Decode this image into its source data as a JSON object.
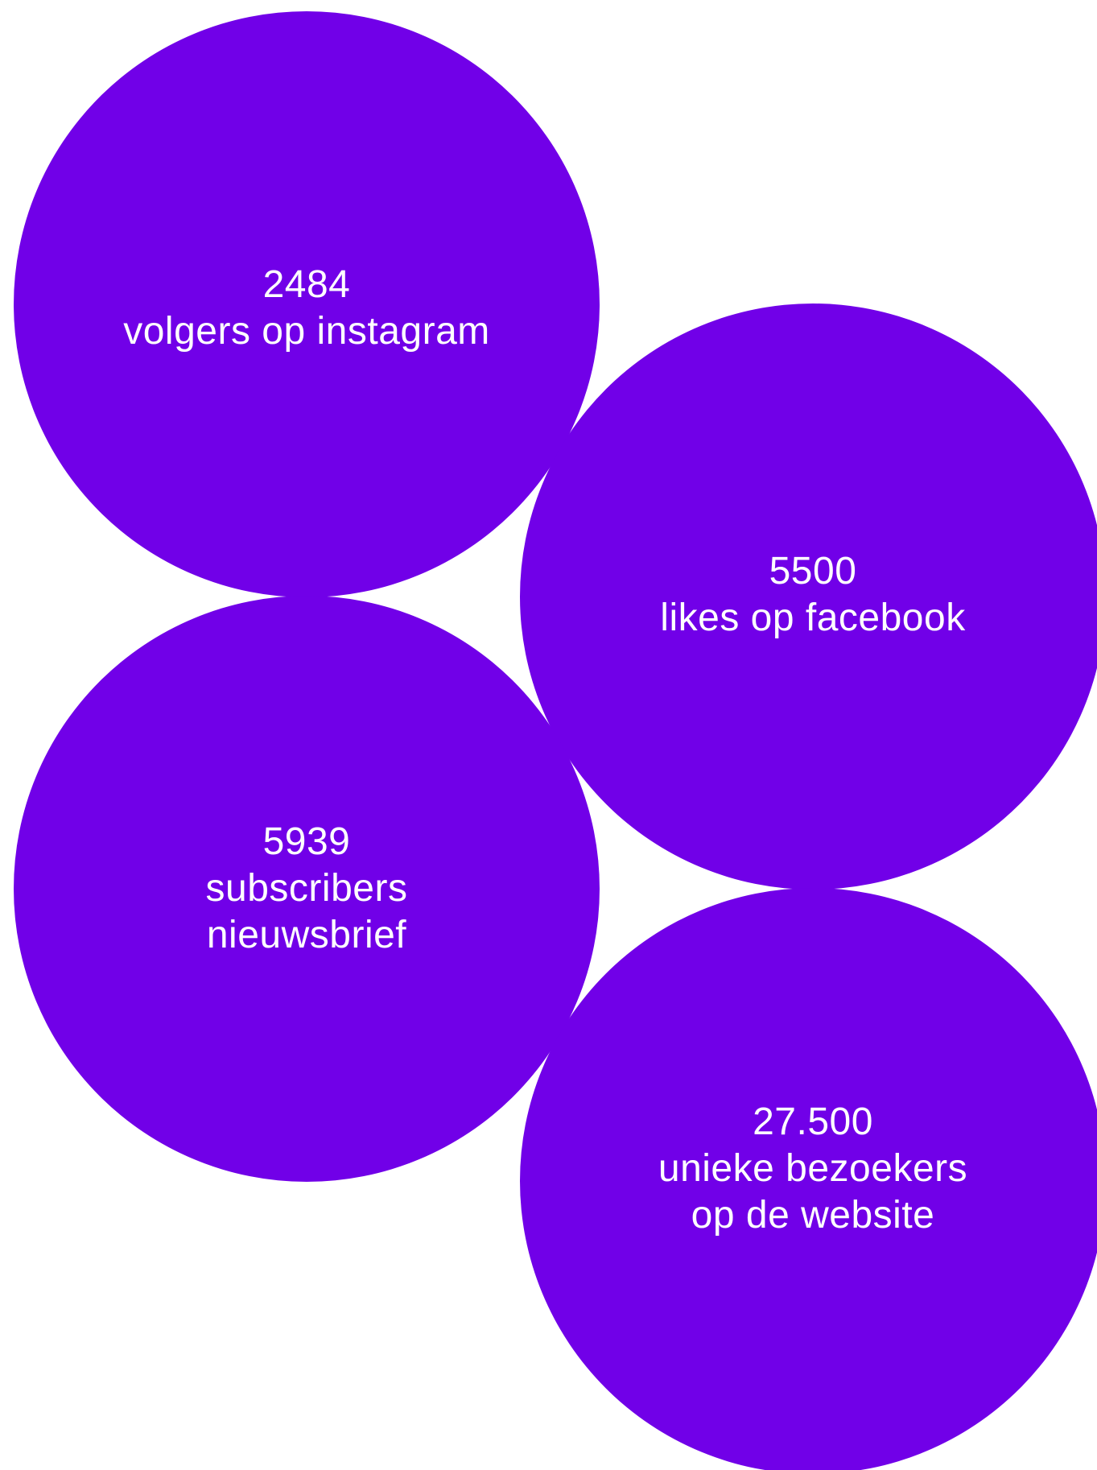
{
  "colors": {
    "background": "#ffffff",
    "bubble": "#7100e8",
    "text": "#ffffff"
  },
  "stats": [
    {
      "value": "2484",
      "lines": [
        "volgers op instagram"
      ]
    },
    {
      "value": "5500",
      "lines": [
        "likes op facebook"
      ]
    },
    {
      "value": "5939",
      "lines": [
        "subscribers",
        "nieuwsbrief"
      ]
    },
    {
      "value": "27.500",
      "lines": [
        "unieke bezoekers",
        "op de website"
      ]
    }
  ]
}
